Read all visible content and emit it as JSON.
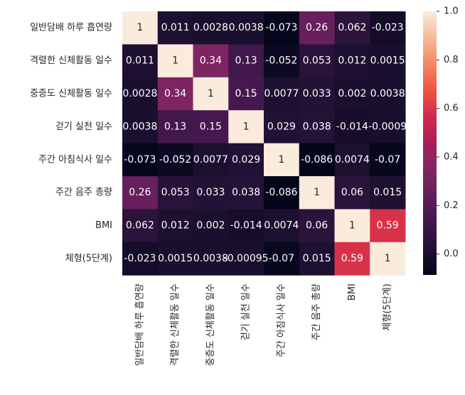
{
  "chart_data": {
    "type": "heatmap",
    "title": "",
    "row_labels": [
      "일반담배 하루 흡연량",
      "격렬한 신체활동 일수",
      "중증도 신체활동 일수",
      "걷기 실천 일수",
      "주간 아침식사 일수",
      "주간 음주 총량",
      "BMI",
      "체형(5단계)"
    ],
    "col_labels": [
      "일반담배 하루 흡연량",
      "격렬한 신체활동 일수",
      "중증도 신체활동 일수",
      "걷기 실천 일수",
      "주간 아침식사 일수",
      "주간 음주 총량",
      "BMI",
      "체형(5단계)"
    ],
    "values": [
      [
        1,
        0.011,
        0.0028,
        0.0038,
        -0.073,
        0.26,
        0.062,
        -0.023
      ],
      [
        0.011,
        1,
        0.34,
        0.13,
        -0.052,
        0.053,
        0.012,
        0.0015
      ],
      [
        0.0028,
        0.34,
        1,
        0.15,
        0.0077,
        0.033,
        0.002,
        0.0038
      ],
      [
        0.0038,
        0.13,
        0.15,
        1,
        0.029,
        0.038,
        -0.014,
        -0.0009
      ],
      [
        -0.073,
        -0.052,
        0.0077,
        0.029,
        1,
        -0.086,
        0.0074,
        -0.07
      ],
      [
        0.26,
        0.053,
        0.033,
        0.038,
        -0.086,
        1,
        0.06,
        0.015
      ],
      [
        0.062,
        0.012,
        0.002,
        -0.014,
        0.0074,
        0.06,
        1,
        0.59
      ],
      [
        -0.023,
        0.0015,
        0.0038,
        -0.00095,
        -0.07,
        0.015,
        0.59,
        1
      ]
    ],
    "annotations": [
      [
        "1",
        "0.011",
        "0.0028",
        "0.0038",
        "-0.073",
        "0.26",
        "0.062",
        "-0.023"
      ],
      [
        "0.011",
        "1",
        "0.34",
        "0.13",
        "-0.052",
        "0.053",
        "0.012",
        "0.0015"
      ],
      [
        "0.0028",
        "0.34",
        "1",
        "0.15",
        "0.0077",
        "0.033",
        "0.002",
        "0.0038"
      ],
      [
        "0.0038",
        "0.13",
        "0.15",
        "1",
        "0.029",
        "0.038",
        "-0.014",
        "-0.0009"
      ],
      [
        "-0.073",
        "-0.052",
        "0.0077",
        "0.029",
        "1",
        "-0.086",
        "0.0074",
        "-0.07"
      ],
      [
        "0.26",
        "0.053",
        "0.033",
        "0.038",
        "-0.086",
        "1",
        "0.06",
        "0.015"
      ],
      [
        "0.062",
        "0.012",
        "0.002",
        "-0.014",
        "0.0074",
        "0.06",
        "1",
        "0.59"
      ],
      [
        "-0.023",
        "0.0015",
        "0.0038",
        "-0.00095",
        "-0.07",
        "0.015",
        "0.59",
        "1"
      ]
    ],
    "colorbar": {
      "range": [
        -0.086,
        1
      ],
      "ticks": [
        "0.0",
        "0.2",
        "0.4",
        "0.6",
        "0.8",
        "1.0"
      ],
      "tick_values": [
        0,
        0.2,
        0.4,
        0.6,
        0.8,
        1.0
      ],
      "colormap": "rocket"
    }
  }
}
